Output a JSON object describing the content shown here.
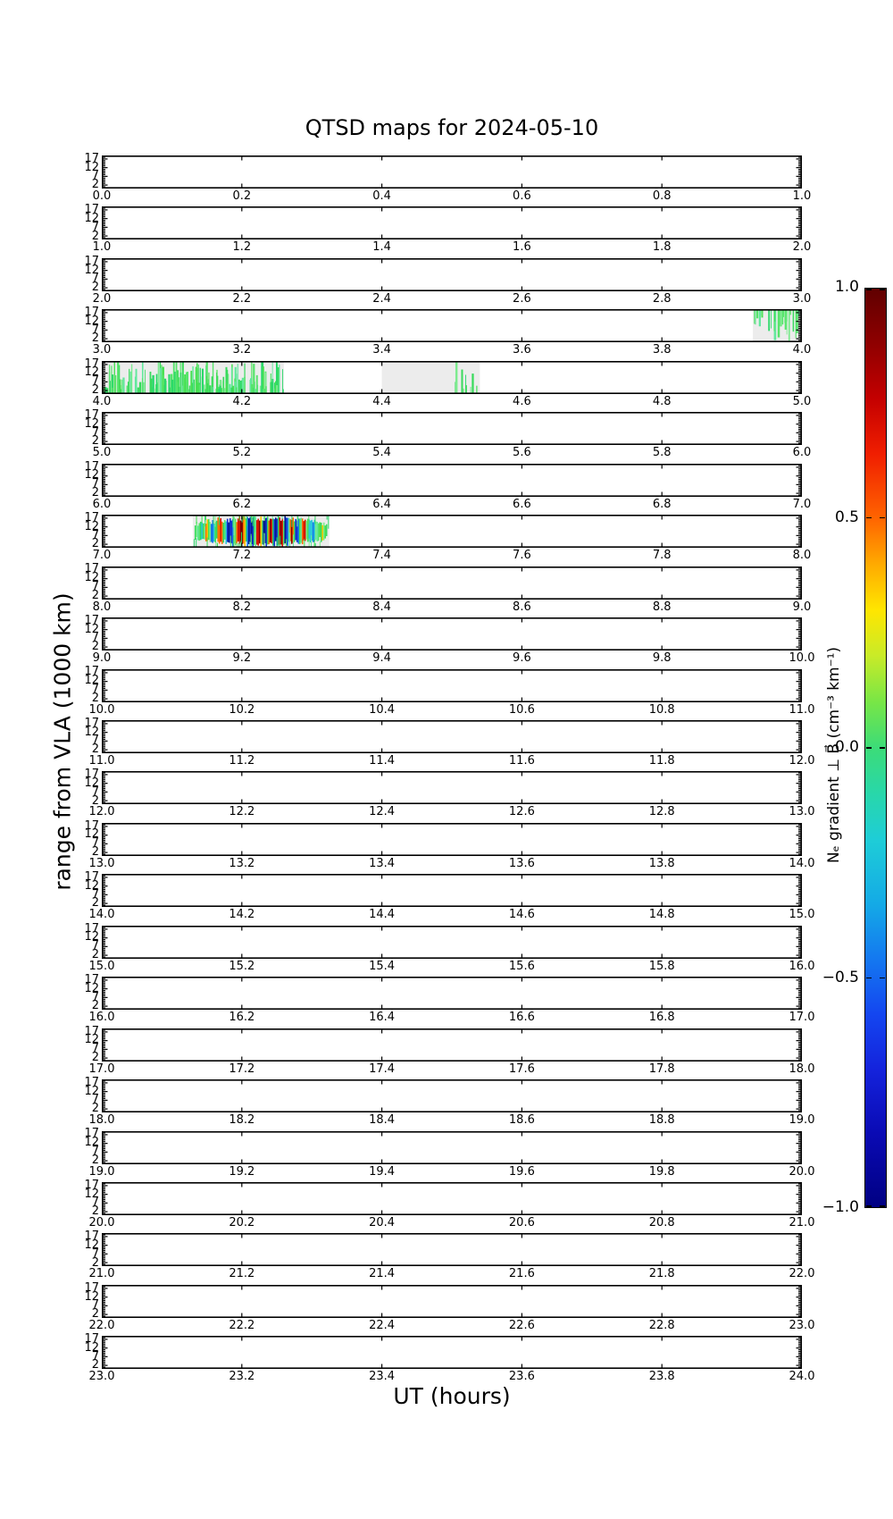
{
  "title": "QTSD maps for 2024-05-10",
  "xlabel": "UT (hours)",
  "ylabel": "range from VLA (1000 km)",
  "colorbar": {
    "label": "Nₑ gradient ⊥ B⃗ (cm⁻³ km⁻¹)",
    "tick_labels": [
      "1.0",
      "0.5",
      "0.0",
      "−0.5",
      "−1.0"
    ],
    "vmax": 1.0,
    "vmin": -1.0
  },
  "chart_data": {
    "type": "heatmap",
    "title": "QTSD maps for 2024-05-10",
    "xlabel": "UT (hours)",
    "ylabel": "range from VLA (1000 km)",
    "layout": "24 stacked hourly panels, one per UT hour 0-24, shared y axis; colorbar at right",
    "panels_hours": [
      0,
      1,
      2,
      3,
      4,
      5,
      6,
      7,
      8,
      9,
      10,
      11,
      12,
      13,
      14,
      15,
      16,
      17,
      18,
      19,
      20,
      21,
      22,
      23
    ],
    "xtick_offsets": [
      0.0,
      0.2,
      0.4,
      0.6,
      0.8,
      1.0
    ],
    "ytick_values": [
      2,
      7,
      12,
      17
    ],
    "y_range": [
      0,
      19
    ],
    "grid": false,
    "background_value": "white = no data",
    "features": [
      {
        "panel_hour": 3,
        "ut_start": 3.93,
        "ut_end": 4.0,
        "pattern": "green-streaks",
        "anchor": "top",
        "density": 0.55,
        "x_bias": 1.0,
        "note": "small patch of weak positive (green) gradient streaks hanging from panel top just before 4.0 UT"
      },
      {
        "panel_hour": 4,
        "ut_start": 4.0,
        "ut_end": 4.26,
        "pattern": "green-streaks",
        "anchor": "bottom",
        "density": 0.95,
        "x_bias": 0.85,
        "note": "dense field of weak positive (green) gradient streaks on grey data background, 4.00-4.26 UT"
      },
      {
        "panel_hour": 4,
        "ut_start": 4.4,
        "ut_end": 4.54,
        "pattern": "green-streaks",
        "anchor": "bottom",
        "density": 0.08,
        "x_bias": 0.45,
        "note": "sparse green streaks on grey data background, clustered near 4.50 UT"
      },
      {
        "panel_hour": 7,
        "ut_start": 7.13,
        "ut_end": 7.325,
        "pattern": "bipolar-wave-packets",
        "anchor": "middle",
        "density": 1.0,
        "x_bias": 1.0,
        "note": "strong quasi-periodic bipolar oscillations (alternating red/orange positive and blue negative packets within a green envelope), 7.13-7.33 UT"
      }
    ],
    "colorbar": {
      "label": "Nₑ gradient ⊥ B⃗ (cm⁻³ km⁻¹)",
      "tick_values": [
        1.0,
        0.5,
        0.0,
        -0.5,
        -1.0
      ],
      "tick_labels": [
        "1.0",
        "0.5",
        "0.0",
        "−0.5",
        "−1.0"
      ],
      "colormap": "jet (dark blue = −1.0 … green = 0.0 … dark red = +1.0)"
    }
  }
}
